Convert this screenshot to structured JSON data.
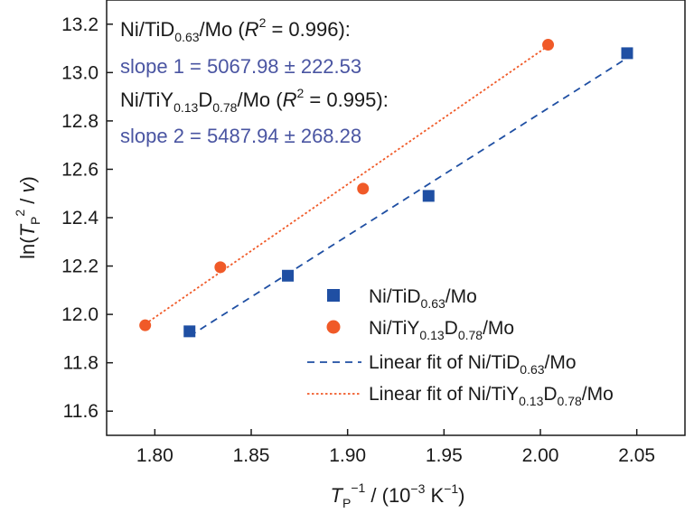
{
  "chart_data": {
    "type": "scatter",
    "xlim": [
      1.775,
      2.075
    ],
    "ylim": [
      11.5,
      13.3
    ],
    "x_ticks": [
      "1.80",
      "1.85",
      "1.90",
      "1.95",
      "2.00",
      "2.05"
    ],
    "y_ticks": [
      "11.6",
      "11.8",
      "12.0",
      "12.2",
      "12.4",
      "12.6",
      "12.8",
      "13.0",
      "13.2"
    ],
    "xlabel": {
      "main": "T",
      "sub": "P",
      "sup": "−1",
      "rest": " / (10",
      "sup2": "−3",
      "rest2": " K",
      "sup3": "−1",
      "end": ")"
    },
    "ylabel": {
      "pre": "ln(",
      "main": "T",
      "sub": "P",
      "sup": "2",
      "rest": " / ",
      "v": "v",
      "end": ")"
    },
    "series": [
      {
        "name": "Ni/TiD0.63/Mo",
        "marker": "square",
        "color": "#1f4fa3",
        "x": [
          1.818,
          1.869,
          1.942,
          2.045
        ],
        "y": [
          11.93,
          12.16,
          12.49,
          13.08
        ],
        "fit": {
          "x": [
            1.818,
            2.045
          ],
          "y": [
            11.91,
            13.06
          ],
          "style": "dashed",
          "color": "#1f4fa3"
        }
      },
      {
        "name": "Ni/TiY0.13D0.78/Mo",
        "marker": "circle",
        "color": "#f05a28",
        "x": [
          1.795,
          1.834,
          1.908,
          2.004
        ],
        "y": [
          11.955,
          12.195,
          12.52,
          13.115
        ],
        "fit": {
          "x": [
            1.795,
            2.004
          ],
          "y": [
            11.96,
            13.11
          ],
          "style": "dotted",
          "color": "#f05a28"
        }
      }
    ],
    "annotations": {
      "line1": {
        "a": "Ni/TiD",
        "b": "0.63",
        "c": "/Mo (",
        "r": "R",
        "r2": "2",
        "d": " = 0.996):"
      },
      "slope1": "slope 1 = 5067.98 ± 222.53",
      "line2": {
        "a": "Ni/TiY",
        "b": "0.13",
        "c": "D",
        "d": "0.78",
        "e": "/Mo (",
        "r": "R",
        "r2": "2",
        "f": " = 0.995):"
      },
      "slope2": "slope 2 = 5487.94 ± 268.28"
    },
    "legend": {
      "placement": "bottom-right",
      "entry1": {
        "a": "Ni/TiD",
        "b": "0.63",
        "c": "/Mo"
      },
      "entry2": {
        "a": "Ni/TiY",
        "b": "0.13",
        "c": "D",
        "d": "0.78",
        "e": "/Mo"
      },
      "entry3": {
        "a": "Linear fit of Ni/TiD",
        "b": "0.63",
        "c": "/Mo"
      },
      "entry4": {
        "a": "Linear fit of Ni/TiY",
        "b": "0.13",
        "c": "D",
        "d": "0.78",
        "e": "/Mo"
      }
    }
  }
}
